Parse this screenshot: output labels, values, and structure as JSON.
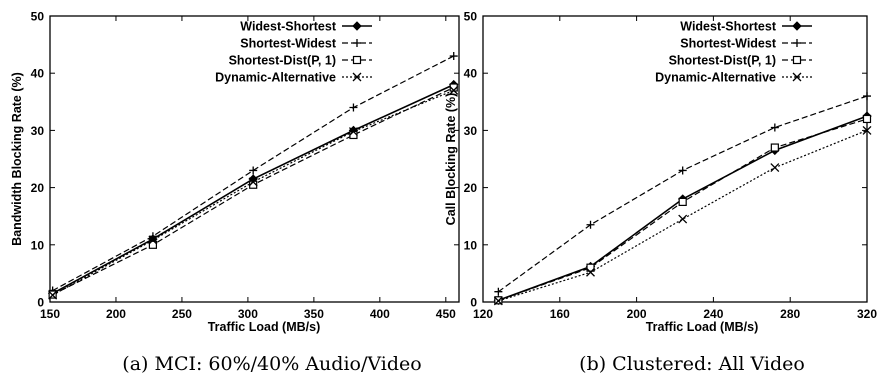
{
  "chart_data": [
    {
      "type": "line",
      "title": "",
      "caption": "(a) MCI: 60%/40% Audio/Video",
      "xlabel": "Traffic Load (MB/s)",
      "ylabel": "Bandwidth Blocking Rate (%)",
      "xlim": [
        150,
        460
      ],
      "ylim": [
        0,
        50
      ],
      "xticks": [
        150,
        200,
        250,
        300,
        350,
        400,
        450
      ],
      "yticks": [
        0,
        10,
        20,
        30,
        40,
        50
      ],
      "grid": false,
      "legend_position": "top-right",
      "series": [
        {
          "name": "Widest-Shortest",
          "marker": "diamond",
          "dash": "solid",
          "x": [
            152,
            228,
            304,
            380,
            456
          ],
          "values": [
            1.5,
            11.0,
            21.5,
            30.0,
            38.0
          ]
        },
        {
          "name": "Shortest-Widest",
          "marker": "plus",
          "dash": "dashed",
          "x": [
            152,
            228,
            304,
            380,
            456
          ],
          "values": [
            2.0,
            11.5,
            23.0,
            34.0,
            43.0
          ]
        },
        {
          "name": "Shortest-Dist(P, 1)",
          "marker": "square",
          "dash": "dashed",
          "x": [
            152,
            228,
            304,
            380,
            456
          ],
          "values": [
            1.3,
            10.0,
            20.5,
            29.2,
            37.5
          ]
        },
        {
          "name": "Dynamic-Alternative",
          "marker": "x",
          "dash": "dotted",
          "x": [
            152,
            228,
            304,
            380,
            456
          ],
          "values": [
            1.2,
            10.8,
            21.0,
            29.8,
            37.0
          ]
        }
      ]
    },
    {
      "type": "line",
      "title": "",
      "caption": "(b) Clustered: All Video",
      "xlabel": "Traffic Load (MB/s)",
      "ylabel": "Call Blocking Rate (%)",
      "xlim": [
        120,
        320
      ],
      "ylim": [
        0,
        50
      ],
      "xticks": [
        120,
        160,
        200,
        240,
        280,
        320
      ],
      "yticks": [
        0,
        10,
        20,
        30,
        40,
        50
      ],
      "grid": false,
      "legend_position": "top-right",
      "series": [
        {
          "name": "Widest-Shortest",
          "marker": "diamond",
          "dash": "solid",
          "x": [
            128,
            176,
            224,
            272,
            320
          ],
          "values": [
            0.3,
            6.2,
            18.0,
            26.5,
            32.5
          ]
        },
        {
          "name": "Shortest-Widest",
          "marker": "plus",
          "dash": "dashed",
          "x": [
            128,
            176,
            224,
            272,
            320
          ],
          "values": [
            1.8,
            13.5,
            23.0,
            30.5,
            36.0
          ]
        },
        {
          "name": "Shortest-Dist(P, 1)",
          "marker": "square",
          "dash": "dashed",
          "x": [
            128,
            176,
            224,
            272,
            320
          ],
          "values": [
            0.3,
            6.0,
            17.5,
            27.0,
            32.0
          ]
        },
        {
          "name": "Dynamic-Alternative",
          "marker": "x",
          "dash": "dotted",
          "x": [
            128,
            176,
            224,
            272,
            320
          ],
          "values": [
            0.2,
            5.2,
            14.5,
            23.5,
            30.0
          ]
        }
      ]
    }
  ]
}
